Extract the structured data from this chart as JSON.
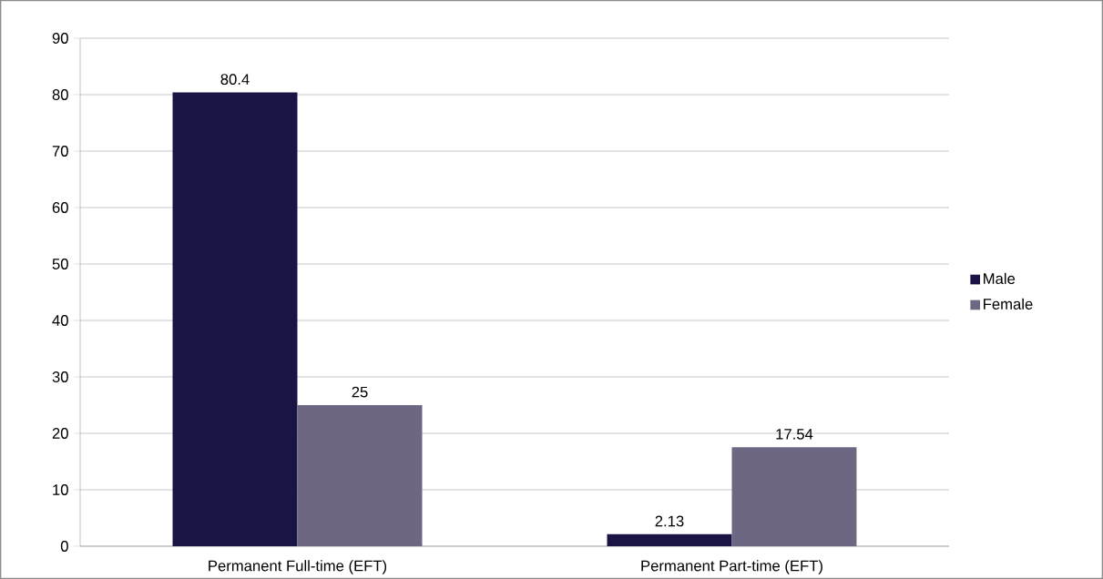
{
  "chart_data": {
    "type": "bar",
    "categories": [
      "Permanent Full-time (EFT)",
      "Permanent Part-time (EFT)"
    ],
    "series": [
      {
        "name": "Male",
        "color": "#1a1446",
        "values": [
          80.4,
          2.13
        ]
      },
      {
        "name": "Female",
        "color": "#6e6784",
        "values": [
          25,
          17.54
        ]
      }
    ],
    "ylim": [
      0,
      90
    ],
    "yticks": [
      0,
      10,
      20,
      30,
      40,
      50,
      60,
      70,
      80,
      90
    ],
    "grid": "y",
    "legend": "right",
    "data_labels": true
  }
}
